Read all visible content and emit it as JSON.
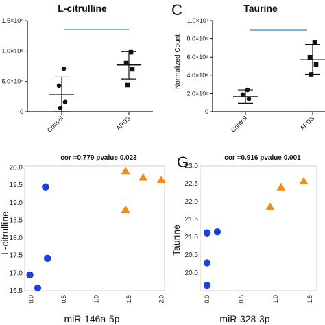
{
  "panel_labels": {
    "C": "C",
    "G": "G"
  },
  "chart_data": [
    {
      "type": "scatter",
      "subtype": "dot-plot-with-mean-sd",
      "title": "L-citrulline",
      "categories": [
        "Control",
        "ARDS"
      ],
      "ylabel": "",
      "yticks": [
        "0",
        "5.0×10⁵",
        "1.0×10⁶",
        "1.5×10⁶"
      ],
      "ylim": [
        0,
        1500000
      ],
      "points": {
        "Control": [
          710000,
          430000,
          160000,
          60000
        ],
        "ARDS": [
          980000,
          800000,
          700000,
          440000
        ]
      },
      "mean": [
        280000,
        770000
      ],
      "sd_low": [
        0,
        540000
      ],
      "sd_high": [
        570000,
        990000
      ],
      "significance_bar": true,
      "marker_shapes": [
        "circle",
        "square"
      ]
    },
    {
      "type": "scatter",
      "subtype": "dot-plot-with-mean-sd",
      "title": "Taurine",
      "categories": [
        "Control",
        "ARDS"
      ],
      "ylabel": "Normalized Count",
      "yticks": [
        "0",
        "2.0×10⁶",
        "4.0×10⁶",
        "6.0×10⁶",
        "8.0×10⁶",
        "1.0×10⁷"
      ],
      "ylim": [
        0,
        10000000
      ],
      "points": {
        "Control": [
          2400000,
          1900000,
          1400000
        ],
        "ARDS": [
          7600000,
          6000000,
          5200000,
          4100000
        ]
      },
      "mean": [
        1650000,
        5700000
      ],
      "sd_low": [
        950000,
        4100000
      ],
      "sd_high": [
        2400000,
        7400000
      ],
      "significance_bar": true,
      "marker_shapes": [
        "circle",
        "square"
      ]
    },
    {
      "type": "scatter",
      "title": "cor =0.779  pvalue 0.023",
      "xlabel": "miR-146a-5p",
      "ylabel": "L-citrulline",
      "xlim": [
        -0.1,
        2.05
      ],
      "ylim": [
        16.5,
        20.05
      ],
      "xticks": [
        "0.0",
        "0.5",
        "1.0",
        "1.5",
        "2.0"
      ],
      "yticks": [
        "16.5",
        "17.0",
        "17.5",
        "18.0",
        "18.5",
        "19.0",
        "19.5",
        "20.0"
      ],
      "series": [
        {
          "color": "#1f3fd9",
          "marker": "circle",
          "x": [
            -0.02,
            0.1,
            0.22,
            0.25
          ],
          "y": [
            16.95,
            16.58,
            19.45,
            17.42
          ]
        },
        {
          "color": "#f28c12",
          "marker": "triangle",
          "x": [
            1.45,
            1.45,
            1.72,
            2.0
          ],
          "y": [
            19.9,
            18.8,
            19.72,
            19.65
          ]
        }
      ]
    },
    {
      "type": "scatter",
      "title": "cor =0.916  pvalue 0.001",
      "xlabel": "miR-328-3p",
      "ylabel": "Taurine",
      "xlim": [
        -0.1,
        1.6
      ],
      "ylim": [
        19.5,
        23.0
      ],
      "xticks": [
        "0.0",
        "0.5",
        "1.0",
        "1.5"
      ],
      "yticks": [
        "20.0",
        "20.5",
        "21.0",
        "21.5",
        "22.0",
        "22.5",
        "23.0"
      ],
      "series": [
        {
          "color": "#1f3fd9",
          "marker": "circle",
          "x": [
            0.0,
            0.0,
            0.0,
            0.15
          ],
          "y": [
            21.12,
            20.28,
            19.65,
            21.15
          ]
        },
        {
          "color": "#f28c12",
          "marker": "triangle",
          "x": [
            0.92,
            1.08,
            1.41
          ],
          "y": [
            21.85,
            22.4,
            22.57
          ]
        }
      ]
    }
  ]
}
